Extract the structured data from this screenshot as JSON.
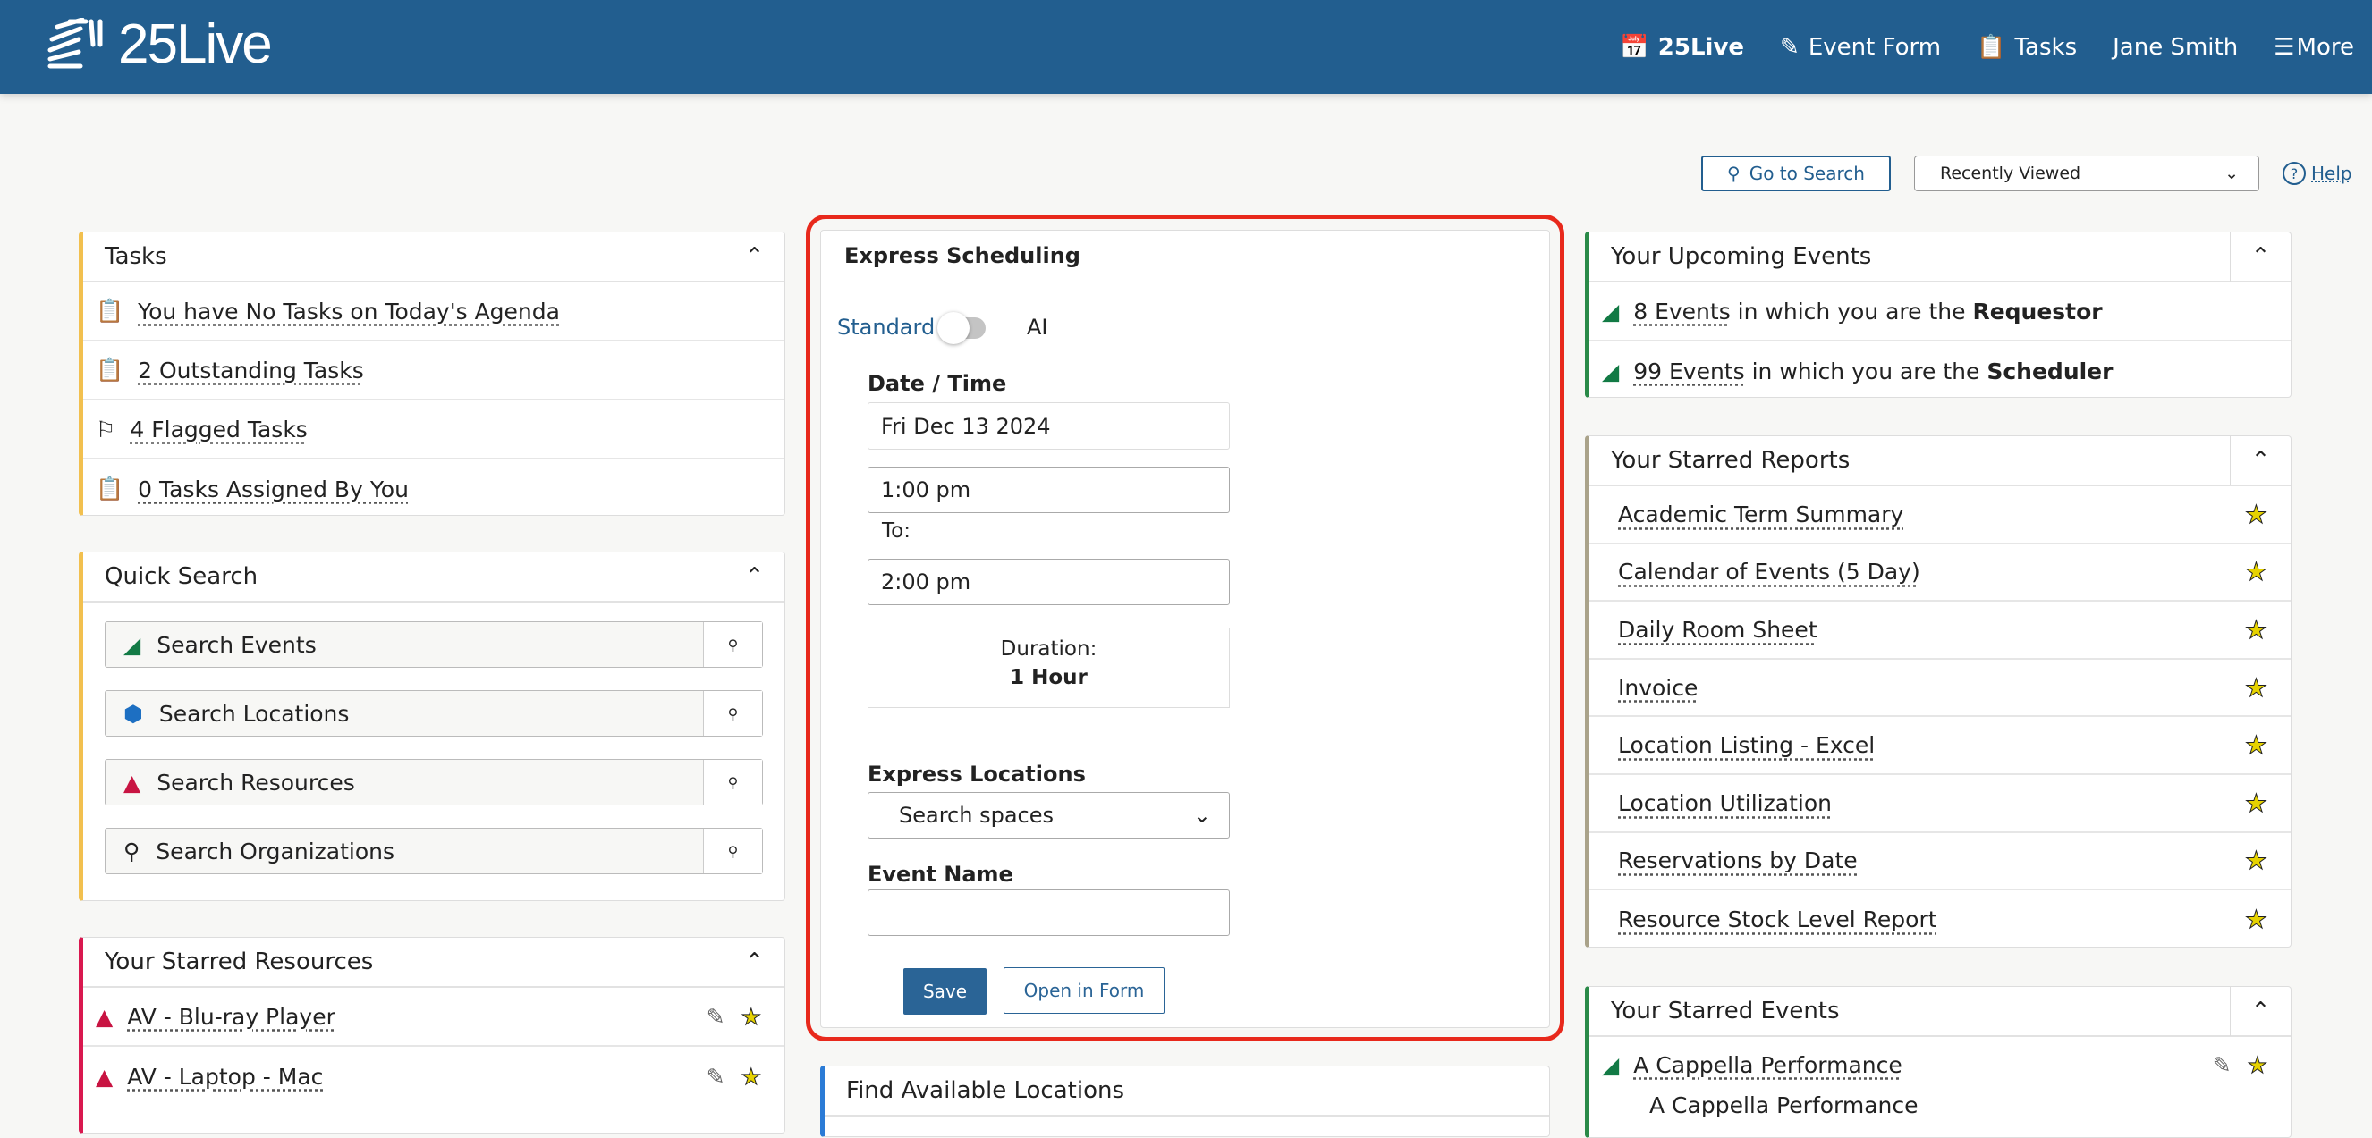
{
  "header": {
    "logo": "25Live",
    "nav": [
      {
        "label": "25Live",
        "icon": "calendar-bolt-icon"
      },
      {
        "label": "Event Form",
        "icon": "edit-icon"
      },
      {
        "label": "Tasks",
        "icon": "clipboard-icon"
      },
      {
        "label": "Jane Smith"
      },
      {
        "label": "More",
        "icon": "hamburger-icon"
      }
    ]
  },
  "toolbar": {
    "go_to_search": "Go to Search",
    "recently_viewed": "Recently Viewed",
    "help": "Help"
  },
  "tasks": {
    "title": "Tasks",
    "items": [
      {
        "label": "You have No Tasks on Today's Agenda",
        "icon": "clipboard-check-icon"
      },
      {
        "label": "2 Outstanding Tasks",
        "icon": "clipboard-icon"
      },
      {
        "label": "4 Flagged Tasks",
        "icon": "flag-icon"
      },
      {
        "label": "0 Tasks Assigned By You",
        "icon": "clipboard-check-icon"
      }
    ]
  },
  "quick_search": {
    "title": "Quick Search",
    "items": [
      {
        "label": "Search Events",
        "icon": "event-icon"
      },
      {
        "label": "Search Locations",
        "icon": "location-cube-icon"
      },
      {
        "label": "Search Resources",
        "icon": "resource-pyramid-icon"
      },
      {
        "label": "Search Organizations",
        "icon": "organization-icon"
      }
    ]
  },
  "starred_resources": {
    "title": "Your Starred Resources",
    "items": [
      "AV - Blu-ray Player",
      "AV - Laptop - Mac"
    ]
  },
  "express": {
    "title": "Express Scheduling",
    "mode_standard": "Standard",
    "mode_ai": "AI",
    "ai_enabled": false,
    "date_time_label": "Date / Time",
    "date": "Fri Dec 13 2024",
    "start": "1:00 pm",
    "to_label": "To:",
    "end": "2:00 pm",
    "duration_label": "Duration:",
    "duration": "1 Hour",
    "locations_label": "Express Locations",
    "locations_placeholder": "Search spaces",
    "event_name_label": "Event Name",
    "event_name": "",
    "save": "Save",
    "open_in_form": "Open in Form"
  },
  "find_locations": {
    "title": "Find Available Locations"
  },
  "upcoming": {
    "title": "Your Upcoming Events",
    "items": [
      {
        "link": "8 Events",
        "text": " in which you are the ",
        "role": "Requestor"
      },
      {
        "link": "99 Events",
        "text": " in which you are the ",
        "role": "Scheduler"
      }
    ]
  },
  "starred_reports": {
    "title": "Your Starred Reports",
    "items": [
      "Academic Term Summary",
      "Calendar of Events (5 Day)",
      "Daily Room Sheet",
      "Invoice",
      "Location Listing - Excel",
      "Location Utilization",
      "Reservations by Date",
      "Resource Stock Level Report"
    ]
  },
  "starred_events": {
    "title": "Your Starred Events",
    "items": [
      {
        "name": "A Cappella Performance",
        "subtitle": "A Cappella Performance"
      }
    ]
  },
  "colors": {
    "header": "#225e8f",
    "tasks_accent": "#f2c04f",
    "resources_accent": "#d9184f",
    "events_accent": "#2a8a48",
    "reports_accent": "#aaa38a",
    "find_accent": "#2b7bd6",
    "highlight": "#e8291c"
  }
}
